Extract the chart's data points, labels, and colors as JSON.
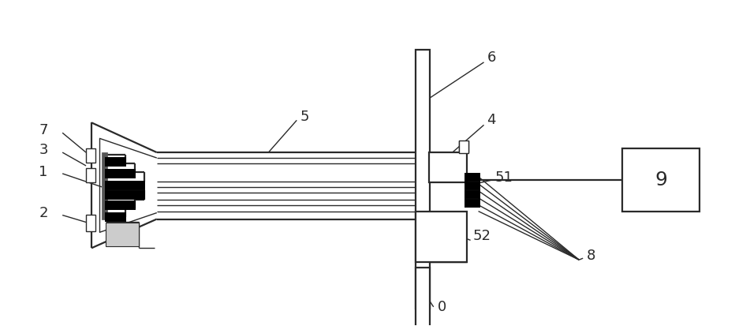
{
  "bg_color": "#ffffff",
  "lc": "#2a2a2a",
  "lw1": 1.0,
  "lw2": 1.6,
  "lw3": 2.2,
  "fig_width": 9.32,
  "fig_height": 4.13,
  "fs": 12
}
